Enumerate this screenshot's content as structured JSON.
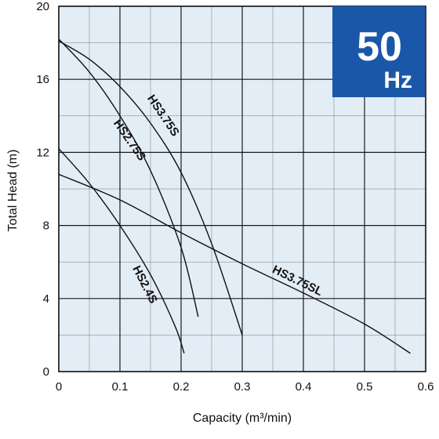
{
  "badge": {
    "frequency": "50",
    "unit": "Hz",
    "color": "#1b57a8"
  },
  "colors": {
    "plot_bg": "#e3edf6",
    "grid": "#1a1a1a",
    "curve": "#111111"
  },
  "chart_data": {
    "type": "line",
    "title": "",
    "xlabel": "Capacity (m³/min)",
    "ylabel": "Total Head (m)",
    "xlim": [
      0,
      0.6
    ],
    "ylim": [
      0,
      20
    ],
    "x_ticks": [
      "0",
      "0.1",
      "0.2",
      "0.3",
      "0.4",
      "0.5",
      "0.6"
    ],
    "y_ticks": [
      "0",
      "4",
      "8",
      "12",
      "16",
      "20"
    ],
    "minor_x_step": 0.05,
    "minor_y_step": 2,
    "grid": true,
    "series": [
      {
        "name": "HS2.4S",
        "points": [
          [
            0,
            12.2
          ],
          [
            0.05,
            10.3
          ],
          [
            0.1,
            8.0
          ],
          [
            0.15,
            5.3
          ],
          [
            0.19,
            2.5
          ],
          [
            0.205,
            1.0
          ]
        ],
        "label_pos": [
          0.14,
          4.75
        ],
        "label_angle": 63
      },
      {
        "name": "HS2.75S",
        "points": [
          [
            0,
            18.2
          ],
          [
            0.05,
            16.4
          ],
          [
            0.1,
            14.0
          ],
          [
            0.15,
            11.0
          ],
          [
            0.2,
            6.8
          ],
          [
            0.228,
            3.0
          ]
        ],
        "label_pos": [
          0.115,
          12.65
        ],
        "label_angle": 55
      },
      {
        "name": "HS3.75S",
        "points": [
          [
            0,
            18.1
          ],
          [
            0.05,
            17.1
          ],
          [
            0.1,
            15.6
          ],
          [
            0.15,
            13.6
          ],
          [
            0.2,
            10.9
          ],
          [
            0.25,
            7.0
          ],
          [
            0.3,
            2.0
          ]
        ],
        "label_pos": [
          0.17,
          14.0
        ],
        "label_angle": 56
      },
      {
        "name": "HS3.75SL",
        "points": [
          [
            0,
            10.8
          ],
          [
            0.1,
            9.4
          ],
          [
            0.2,
            7.6
          ],
          [
            0.3,
            5.9
          ],
          [
            0.4,
            4.3
          ],
          [
            0.5,
            2.6
          ],
          [
            0.575,
            1.0
          ]
        ],
        "label_pos": [
          0.39,
          4.95
        ],
        "label_angle": 26
      }
    ]
  }
}
